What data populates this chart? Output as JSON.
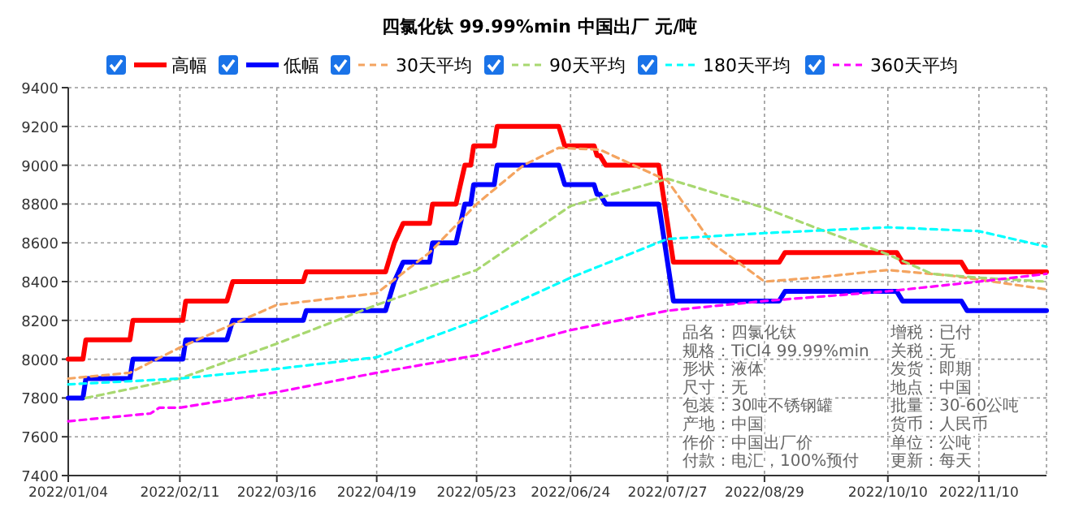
{
  "chart_data": {
    "type": "line",
    "title": "四氯化钛 99.99%min 中国出厂 元/吨",
    "legend": "top",
    "grid": true,
    "ylim": [
      7400,
      9400
    ],
    "yticks": [
      7400,
      7600,
      7800,
      8000,
      8200,
      8400,
      8600,
      8800,
      9000,
      9200,
      9400
    ],
    "xlim": [
      "2022-01-04",
      "2022-12-03"
    ],
    "xticks": [
      {
        "value": "2022-01-04",
        "label": "2022/01/04"
      },
      {
        "value": "2022-02-11",
        "label": "2022/02/11"
      },
      {
        "value": "2022-03-16",
        "label": "2022/03/16"
      },
      {
        "value": "2022-04-19",
        "label": "2022/04/19"
      },
      {
        "value": "2022-05-23",
        "label": "2022/05/23"
      },
      {
        "value": "2022-06-24",
        "label": "2022/06/24"
      },
      {
        "value": "2022-07-27",
        "label": "2022/07/27"
      },
      {
        "value": "2022-08-29",
        "label": "2022/08/29"
      },
      {
        "value": "2022-10-10",
        "label": "2022/10/10"
      },
      {
        "value": "2022-11-10",
        "label": "2022/11/10"
      }
    ],
    "annotations": [
      "品名：四氯化钛",
      "规格：TiCl4 99.99%min",
      "形状：液体",
      "尺寸：无",
      "包装：30吨不锈钢罐",
      "产地：中国",
      "作价：中国出厂价",
      "付款：电汇，100%预付",
      "增税：已付",
      "关税：无",
      "发货：即期",
      "地点：中国",
      "批量：30-60公吨",
      "货币：人民币",
      "单位：公吨",
      "更新：每天"
    ],
    "series": [
      {
        "name": "高幅",
        "color": "#ff0000",
        "line_style": "solid",
        "x": [
          "2022-01-04",
          "2022-01-09",
          "2022-01-10",
          "2022-01-25",
          "2022-01-26",
          "2022-02-12",
          "2022-02-13",
          "2022-02-27",
          "2022-03-01",
          "2022-03-25",
          "2022-03-26",
          "2022-04-22",
          "2022-04-25",
          "2022-04-28",
          "2022-05-07",
          "2022-05-08",
          "2022-05-16",
          "2022-05-19",
          "2022-05-21",
          "2022-05-22",
          "2022-05-29",
          "2022-05-30",
          "2022-06-20",
          "2022-06-22",
          "2022-07-02",
          "2022-07-03",
          "2022-07-04",
          "2022-07-06",
          "2022-07-24",
          "2022-07-29",
          "2022-09-03",
          "2022-09-05",
          "2022-10-13",
          "2022-10-15",
          "2022-11-04",
          "2022-11-06",
          "2022-12-03"
        ],
        "values": [
          8000,
          8000,
          8100,
          8100,
          8200,
          8200,
          8300,
          8300,
          8400,
          8400,
          8450,
          8450,
          8600,
          8700,
          8700,
          8800,
          8800,
          9000,
          9000,
          9100,
          9100,
          9200,
          9200,
          9100,
          9100,
          9050,
          9050,
          9000,
          9000,
          8500,
          8500,
          8550,
          8550,
          8500,
          8500,
          8450,
          8450
        ]
      },
      {
        "name": "低幅",
        "color": "#0000ff",
        "line_style": "solid",
        "x": [
          "2022-01-04",
          "2022-01-09",
          "2022-01-10",
          "2022-01-25",
          "2022-01-26",
          "2022-02-12",
          "2022-02-13",
          "2022-02-27",
          "2022-03-01",
          "2022-03-25",
          "2022-03-26",
          "2022-04-22",
          "2022-04-25",
          "2022-04-28",
          "2022-05-07",
          "2022-05-08",
          "2022-05-16",
          "2022-05-19",
          "2022-05-21",
          "2022-05-22",
          "2022-05-29",
          "2022-05-30",
          "2022-06-20",
          "2022-06-22",
          "2022-07-02",
          "2022-07-03",
          "2022-07-04",
          "2022-07-06",
          "2022-07-24",
          "2022-07-29",
          "2022-09-03",
          "2022-09-05",
          "2022-10-13",
          "2022-10-15",
          "2022-11-04",
          "2022-11-06",
          "2022-12-03"
        ],
        "values": [
          7800,
          7800,
          7900,
          7900,
          8000,
          8000,
          8100,
          8100,
          8200,
          8200,
          8250,
          8250,
          8400,
          8500,
          8500,
          8600,
          8600,
          8800,
          8800,
          8900,
          8900,
          9000,
          9000,
          8900,
          8900,
          8850,
          8850,
          8800,
          8800,
          8300,
          8300,
          8350,
          8350,
          8300,
          8300,
          8250,
          8250
        ]
      },
      {
        "name": "30天平均",
        "color": "#f4a460",
        "line_style": "dashed",
        "x": [
          "2022-01-04",
          "2022-01-25",
          "2022-02-11",
          "2022-03-16",
          "2022-04-19",
          "2022-05-07",
          "2022-05-23",
          "2022-06-08",
          "2022-06-20",
          "2022-07-04",
          "2022-07-27",
          "2022-08-11",
          "2022-08-29",
          "2022-09-15",
          "2022-10-10",
          "2022-11-01",
          "2022-12-03"
        ],
        "values": [
          7900,
          7930,
          8060,
          8280,
          8340,
          8550,
          8800,
          9000,
          9090,
          9080,
          8920,
          8600,
          8400,
          8420,
          8460,
          8430,
          8360
        ]
      },
      {
        "name": "90天平均",
        "color": "#a8d870",
        "line_style": "dashed",
        "x": [
          "2022-01-10",
          "2022-02-11",
          "2022-03-16",
          "2022-04-19",
          "2022-05-23",
          "2022-06-24",
          "2022-07-27",
          "2022-08-29",
          "2022-09-15",
          "2022-10-10",
          "2022-10-25",
          "2022-11-10",
          "2022-12-03"
        ],
        "values": [
          7800,
          7900,
          8080,
          8280,
          8460,
          8790,
          8930,
          8780,
          8680,
          8540,
          8440,
          8420,
          8400
        ]
      },
      {
        "name": "180天平均",
        "color": "#00ffff",
        "line_style": "dashed",
        "x": [
          "2022-01-04",
          "2022-02-11",
          "2022-03-16",
          "2022-04-19",
          "2022-05-23",
          "2022-06-24",
          "2022-07-27",
          "2022-08-29",
          "2022-10-10",
          "2022-11-10",
          "2022-12-03"
        ],
        "values": [
          7870,
          7900,
          7950,
          8010,
          8200,
          8420,
          8620,
          8650,
          8680,
          8660,
          8580
        ]
      },
      {
        "name": "360天平均",
        "color": "#ff00ff",
        "line_style": "dashed",
        "x": [
          "2022-01-04",
          "2022-02-01",
          "2022-02-04",
          "2022-02-11",
          "2022-03-16",
          "2022-04-19",
          "2022-05-23",
          "2022-06-24",
          "2022-07-27",
          "2022-08-29",
          "2022-10-10",
          "2022-11-10",
          "2022-12-03"
        ],
        "values": [
          7680,
          7720,
          7750,
          7750,
          7830,
          7930,
          8020,
          8150,
          8250,
          8300,
          8350,
          8400,
          8440
        ]
      }
    ]
  }
}
